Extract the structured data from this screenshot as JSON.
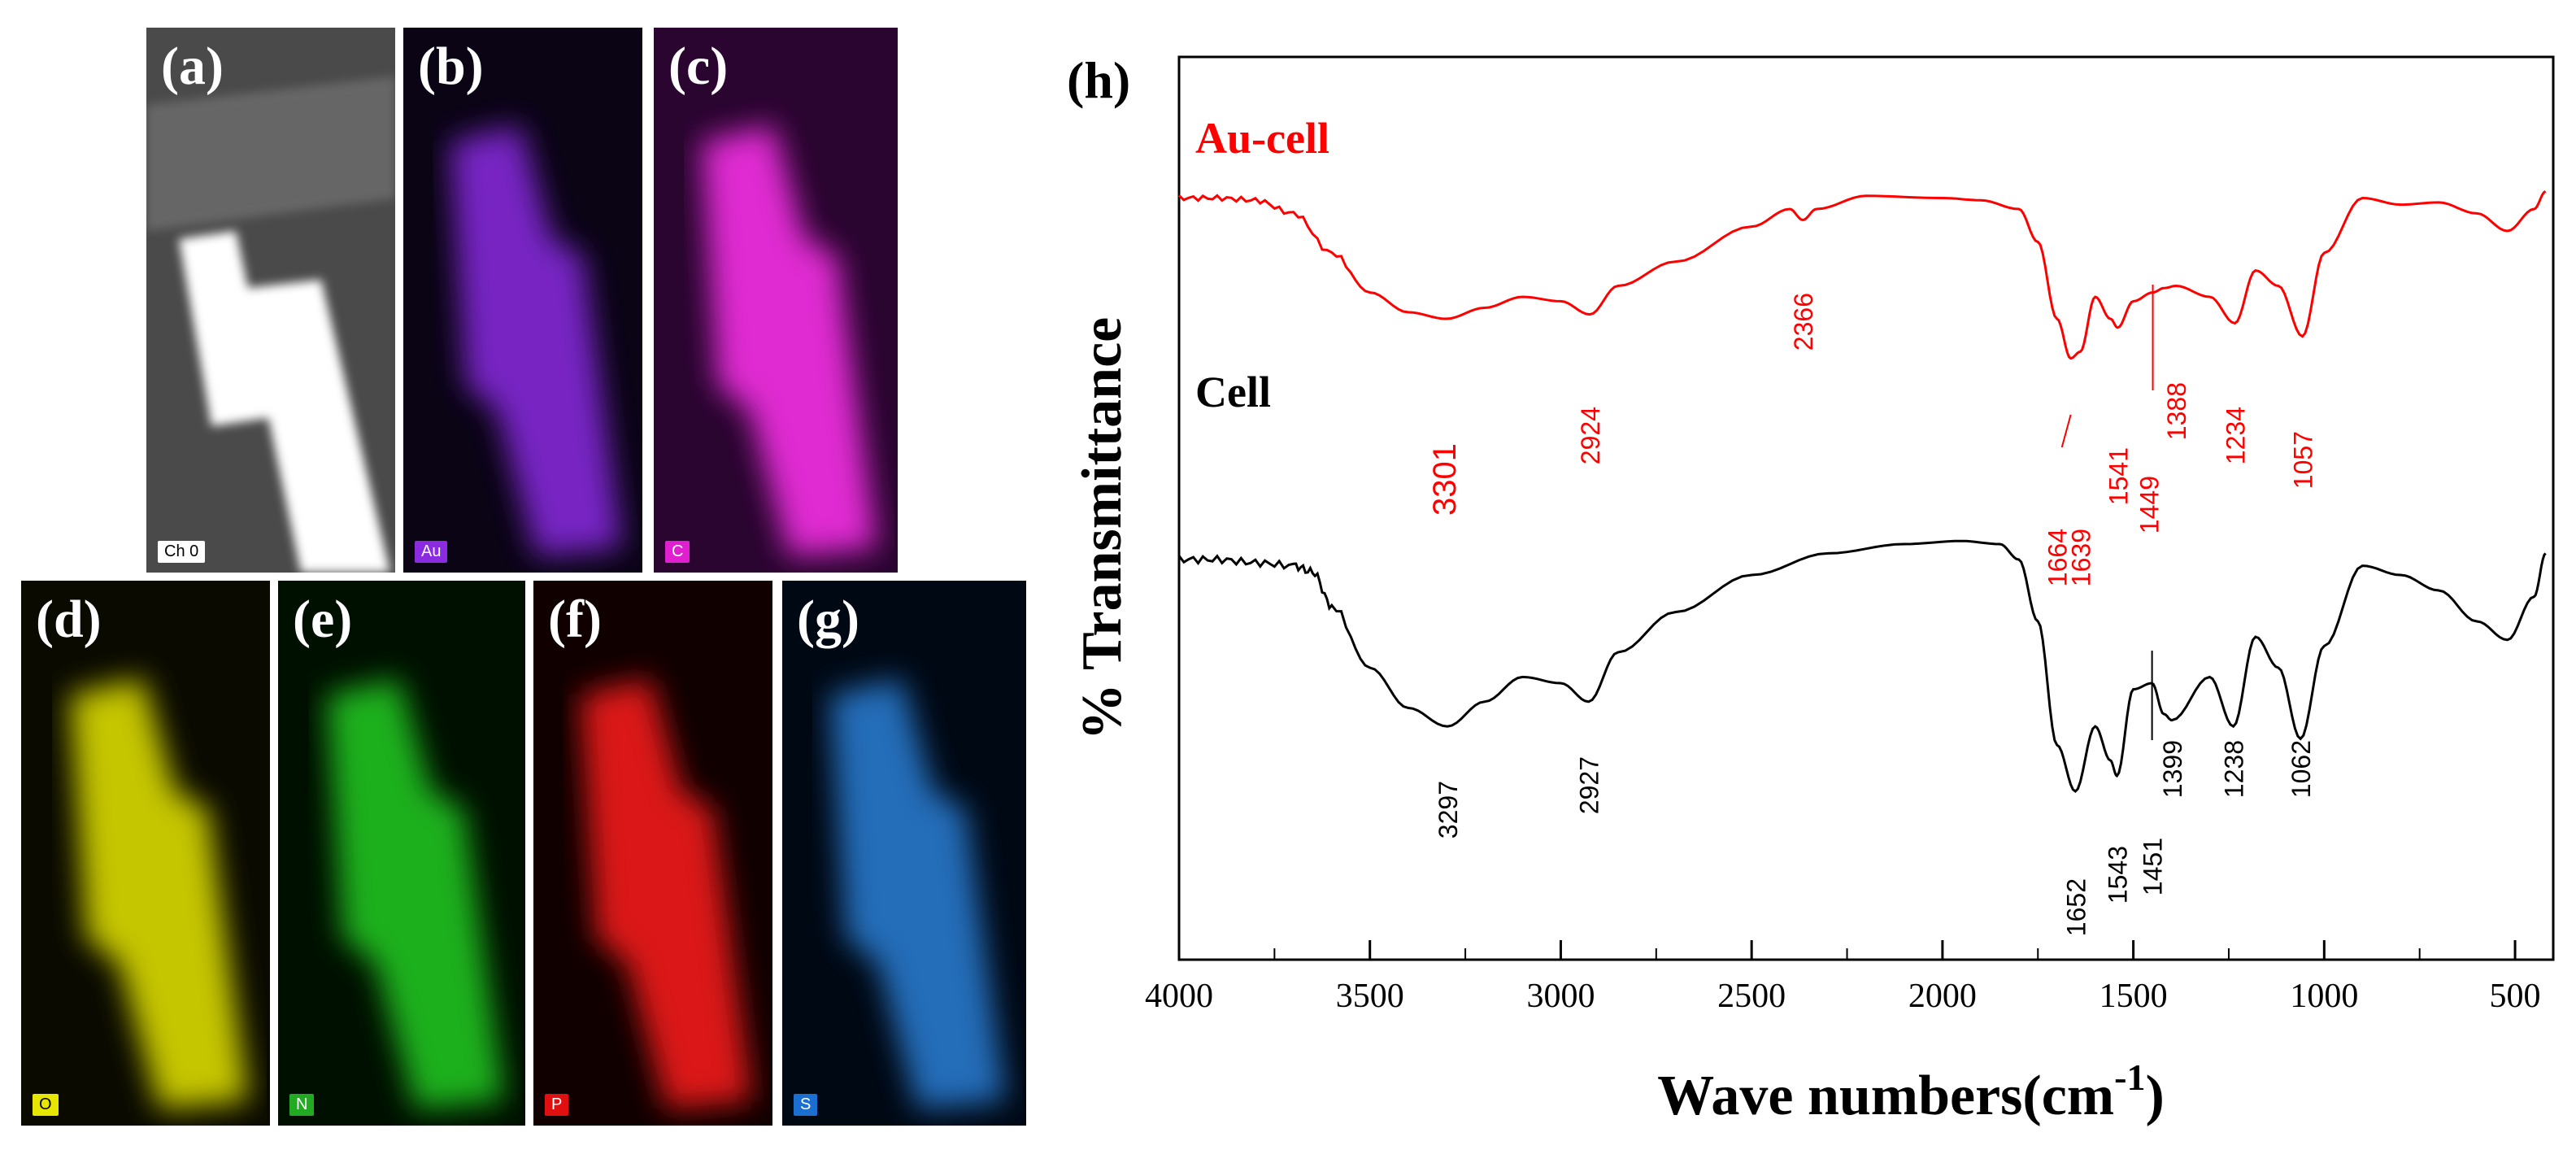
{
  "maps": [
    {
      "label": "(a)",
      "tag": "Ch 0",
      "color": "#ffffff",
      "bg": "#4a4a4a",
      "tagfg": "#000000",
      "tagbg": "#ffffff"
    },
    {
      "label": "(b)",
      "tag": "Au",
      "color": "#8a2be2",
      "bg": "#0a0415",
      "tagfg": "#ffffff",
      "tagbg": "#8a2be2"
    },
    {
      "label": "(c)",
      "tag": "C",
      "color": "#ff33ee",
      "bg": "#2a0530",
      "tagfg": "#ffffff",
      "tagbg": "#e020d0"
    },
    {
      "label": "(d)",
      "tag": "O",
      "color": "#e6e600",
      "bg": "#0a0a00",
      "tagfg": "#000000",
      "tagbg": "#e6e600"
    },
    {
      "label": "(e)",
      "tag": "N",
      "color": "#22cc22",
      "bg": "#001000",
      "tagfg": "#ffffff",
      "tagbg": "#22aa22"
    },
    {
      "label": "(f)",
      "tag": "P",
      "color": "#ff1a1a",
      "bg": "#100000",
      "tagfg": "#ffffff",
      "tagbg": "#e01010"
    },
    {
      "label": "(g)",
      "tag": "S",
      "color": "#2a7fd6",
      "bg": "#000814",
      "tagfg": "#ffffff",
      "tagbg": "#1a6fd0"
    }
  ],
  "chart_data": {
    "type": "line",
    "panel_label": "(h)",
    "xlabel": "Wave numbers(cm",
    "xlabel_sup": "-1",
    "xlabel_end": ")",
    "ylabel": "% Transmittance",
    "xlim": [
      4000,
      400
    ],
    "xticks": [
      4000,
      3500,
      3000,
      2500,
      2000,
      1500,
      1000,
      500
    ],
    "series": [
      {
        "name": "Au-cell",
        "color": "#ff0000",
        "x": [
          4000,
          3900,
          3800,
          3700,
          3600,
          3500,
          3400,
          3300,
          3200,
          3100,
          3000,
          2924,
          2850,
          2700,
          2500,
          2400,
          2366,
          2330,
          2200,
          2000,
          1900,
          1800,
          1750,
          1700,
          1664,
          1639,
          1600,
          1560,
          1541,
          1500,
          1449,
          1420,
          1388,
          1300,
          1234,
          1180,
          1120,
          1057,
          1000,
          900,
          800,
          700,
          600,
          520,
          450,
          420
        ],
        "y": [
          0.95,
          0.95,
          0.94,
          0.88,
          0.7,
          0.52,
          0.43,
          0.4,
          0.45,
          0.5,
          0.48,
          0.42,
          0.55,
          0.66,
          0.82,
          0.9,
          0.85,
          0.9,
          0.96,
          0.95,
          0.94,
          0.9,
          0.75,
          0.4,
          0.22,
          0.25,
          0.5,
          0.4,
          0.36,
          0.48,
          0.52,
          0.54,
          0.55,
          0.5,
          0.38,
          0.62,
          0.55,
          0.32,
          0.7,
          0.95,
          0.92,
          0.93,
          0.88,
          0.8,
          0.9,
          0.98
        ]
      },
      {
        "name": "Cell",
        "color": "#000000",
        "x": [
          4000,
          3900,
          3800,
          3700,
          3650,
          3600,
          3500,
          3400,
          3297,
          3200,
          3100,
          3000,
          2927,
          2850,
          2700,
          2500,
          2300,
          2100,
          1950,
          1850,
          1800,
          1750,
          1700,
          1652,
          1600,
          1560,
          1543,
          1500,
          1451,
          1420,
          1399,
          1300,
          1238,
          1180,
          1120,
          1062,
          1000,
          900,
          800,
          700,
          600,
          520,
          450,
          420
        ],
        "y": [
          0.9,
          0.9,
          0.89,
          0.88,
          0.86,
          0.75,
          0.55,
          0.42,
          0.36,
          0.44,
          0.52,
          0.5,
          0.44,
          0.6,
          0.73,
          0.85,
          0.92,
          0.95,
          0.96,
          0.95,
          0.9,
          0.7,
          0.3,
          0.15,
          0.36,
          0.25,
          0.2,
          0.48,
          0.5,
          0.4,
          0.38,
          0.52,
          0.36,
          0.65,
          0.55,
          0.32,
          0.62,
          0.88,
          0.85,
          0.8,
          0.7,
          0.64,
          0.78,
          0.92
        ]
      }
    ],
    "annotations_red": [
      "3301",
      "2924",
      "2366",
      "1664",
      "1639",
      "1541",
      "1449",
      "1388",
      "1234",
      "1057"
    ],
    "annotations_black": [
      "3297",
      "2927",
      "1652",
      "1543",
      "1451",
      "1399",
      "1238",
      "1062"
    ]
  }
}
